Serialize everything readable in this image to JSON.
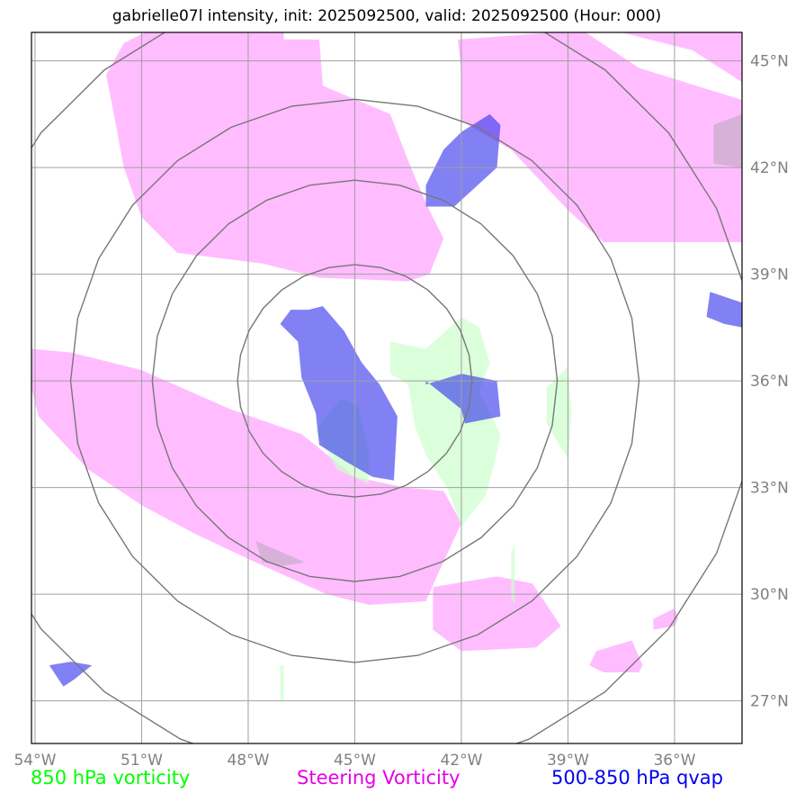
{
  "title": "gabrielle07l intensity, init: 2025092500, valid: 2025092500 (Hour: 000)",
  "colors": {
    "vorticity850": "#ccffcc",
    "steering": "#ff99ff",
    "qvap": "#3333ee",
    "grid": "#a0a0a0",
    "rings": "#777777",
    "tick": "#808080"
  },
  "legend": [
    {
      "label": "850 hPa vorticity",
      "color": "#00ff00"
    },
    {
      "label": "Steering Vorticity",
      "color": "#e600e6"
    },
    {
      "label": "500-850 hPa qvap",
      "color": "#0000ee"
    }
  ],
  "chart_data": {
    "type": "map-contour",
    "xlim": [
      -54.1,
      -34.1
    ],
    "ylim": [
      25.8,
      45.8
    ],
    "lon_ticks": [
      -54,
      -51,
      -48,
      -45,
      -42,
      -39,
      -36
    ],
    "lon_tick_labels": [
      "54°W",
      "51°W",
      "48°W",
      "45°W",
      "42°W",
      "39°W",
      "36°W"
    ],
    "lat_ticks": [
      27,
      30,
      33,
      36,
      39,
      42,
      45
    ],
    "lat_tick_labels": [
      "27°N",
      "30°N",
      "33°N",
      "36°N",
      "39°N",
      "42°N",
      "45°N"
    ],
    "center": [
      -45,
      36
    ],
    "rings_deg": [
      3.3,
      5.7,
      8.0,
      11.3
    ],
    "regions": [
      {
        "layer": "steering",
        "name": "steering-north-central",
        "points": [
          [
            -50.9,
            45.8
          ],
          [
            -47,
            45.8
          ],
          [
            -47,
            45.6
          ],
          [
            -46,
            45.6
          ],
          [
            -45.9,
            44.3
          ],
          [
            -44,
            43.5
          ],
          [
            -43.5,
            42.2
          ],
          [
            -43,
            41
          ],
          [
            -42.5,
            40
          ],
          [
            -42.9,
            39
          ],
          [
            -43.5,
            38.8
          ],
          [
            -46,
            38.9
          ],
          [
            -47.6,
            39.3
          ],
          [
            -50,
            39.6
          ],
          [
            -51.0,
            40.6
          ],
          [
            -51.5,
            42
          ],
          [
            -51.8,
            43.6
          ],
          [
            -52.0,
            44.6
          ],
          [
            -51.5,
            45.5
          ]
        ]
      },
      {
        "layer": "steering",
        "name": "steering-north-east",
        "points": [
          [
            -39.4,
            45.8
          ],
          [
            -34.1,
            45.8
          ],
          [
            -34.1,
            44.4
          ],
          [
            -35.5,
            45.3
          ],
          [
            -37.5,
            45.8
          ],
          [
            -38.5,
            45.8
          ],
          [
            -37,
            44.8
          ],
          [
            -34.1,
            43.9
          ],
          [
            -34.1,
            39.9
          ],
          [
            -38,
            39.9
          ],
          [
            -39,
            40.8
          ],
          [
            -40.6,
            42.5
          ],
          [
            -42,
            43.3
          ],
          [
            -42.0,
            44.7
          ],
          [
            -42.1,
            45.6
          ]
        ]
      },
      {
        "layer": "steering",
        "name": "steering-south-band",
        "points": [
          [
            -54.1,
            36.9
          ],
          [
            -53,
            36.8
          ],
          [
            -51,
            36.3
          ],
          [
            -48.5,
            35.2
          ],
          [
            -46.5,
            34.5
          ],
          [
            -45,
            33.3
          ],
          [
            -43.6,
            33
          ],
          [
            -42.5,
            32.9
          ],
          [
            -42.0,
            32.0
          ],
          [
            -42.6,
            30.7
          ],
          [
            -43.0,
            29.8
          ],
          [
            -44.6,
            29.7
          ],
          [
            -45.8,
            30.0
          ],
          [
            -47.8,
            30.9
          ],
          [
            -49.5,
            31.7
          ],
          [
            -51,
            32.5
          ],
          [
            -52.5,
            33.5
          ],
          [
            -53.9,
            35.0
          ],
          [
            -54.1,
            35.8
          ]
        ]
      },
      {
        "layer": "steering",
        "name": "steering-south-patch",
        "points": [
          [
            -42.8,
            30.2
          ],
          [
            -41,
            30.5
          ],
          [
            -40.0,
            30.3
          ],
          [
            -39.2,
            29.1
          ],
          [
            -39.9,
            28.5
          ],
          [
            -42.0,
            28.4
          ],
          [
            -42.8,
            29.0
          ]
        ]
      },
      {
        "layer": "steering",
        "name": "steering-se-patch",
        "points": [
          [
            -38.0,
            27.8
          ],
          [
            -37,
            27.8
          ],
          [
            -36.9,
            28.0
          ],
          [
            -37.2,
            28.7
          ],
          [
            -38.2,
            28.4
          ],
          [
            -38.4,
            28.0
          ]
        ]
      },
      {
        "layer": "steering",
        "name": "steering-se-small",
        "points": [
          [
            -36.6,
            29.0
          ],
          [
            -36,
            29.1
          ],
          [
            -35.9,
            29.3
          ],
          [
            -36.0,
            29.6
          ],
          [
            -36.6,
            29.3
          ]
        ]
      },
      {
        "layer": "vorticity850",
        "name": "vorticity-central",
        "points": [
          [
            -43.0,
            36.9
          ],
          [
            -42.0,
            37.8
          ],
          [
            -41.5,
            37.5
          ],
          [
            -41.2,
            36.5
          ],
          [
            -41.5,
            35.7
          ],
          [
            -40.9,
            34.5
          ],
          [
            -41.0,
            34.0
          ],
          [
            -41.3,
            32.8
          ],
          [
            -42.0,
            31.9
          ],
          [
            -42.4,
            33.0
          ],
          [
            -43.0,
            33.9
          ],
          [
            -43.3,
            34.7
          ],
          [
            -43.5,
            35.9
          ],
          [
            -44.0,
            36.2
          ],
          [
            -44.0,
            37.1
          ]
        ]
      },
      {
        "layer": "vorticity850",
        "name": "vorticity-east-sliver",
        "points": [
          [
            -39.6,
            35.8
          ],
          [
            -39,
            36.4
          ],
          [
            -38.9,
            35.1
          ],
          [
            -39.0,
            33.8
          ],
          [
            -39.6,
            34.8
          ]
        ]
      },
      {
        "layer": "vorticity850",
        "name": "vorticity-west-blob",
        "points": [
          [
            -45.4,
            35.5
          ],
          [
            -44.9,
            35.3
          ],
          [
            -44.6,
            34.0
          ],
          [
            -44.6,
            33.1
          ],
          [
            -45.5,
            33.5
          ],
          [
            -46.1,
            34.6
          ]
        ]
      },
      {
        "layer": "vorticity850",
        "name": "vorticity-south-line",
        "points": [
          [
            -40.6,
            31.2
          ],
          [
            -40.5,
            31.4
          ],
          [
            -40.5,
            29.7
          ],
          [
            -40.6,
            29.9
          ]
        ]
      },
      {
        "layer": "vorticity850",
        "name": "vorticity-sw-line",
        "points": [
          [
            -47.1,
            28.0
          ],
          [
            -47,
            28.0
          ],
          [
            -47,
            27.0
          ],
          [
            -47.1,
            27.0
          ]
        ]
      },
      {
        "layer": "qvap",
        "name": "qvap-north",
        "points": [
          [
            -43.0,
            40.9
          ],
          [
            -42.2,
            40.9
          ],
          [
            -41.0,
            42.0
          ],
          [
            -40.9,
            43.2
          ],
          [
            -41.2,
            43.5
          ],
          [
            -42.0,
            43.0
          ],
          [
            -42.5,
            42.5
          ],
          [
            -43.0,
            41.5
          ]
        ]
      },
      {
        "layer": "qvap",
        "name": "qvap-central",
        "points": [
          [
            -46.3,
            38.0
          ],
          [
            -45.9,
            38.1
          ],
          [
            -45.3,
            37.4
          ],
          [
            -44.8,
            36.5
          ],
          [
            -44.3,
            35.9
          ],
          [
            -43.8,
            35.0
          ],
          [
            -43.9,
            33.2
          ],
          [
            -44.5,
            33.3
          ],
          [
            -45.2,
            33.7
          ],
          [
            -46,
            34.2
          ],
          [
            -46.1,
            35.1
          ],
          [
            -46.5,
            36.1
          ],
          [
            -46.6,
            37.1
          ],
          [
            -47.1,
            37.6
          ],
          [
            -46.8,
            38.0
          ]
        ]
      },
      {
        "layer": "qvap",
        "name": "qvap-east-center",
        "points": [
          [
            -43.0,
            35.9
          ],
          [
            -42.0,
            36.2
          ],
          [
            -41.0,
            36.0
          ],
          [
            -40.9,
            35.0
          ],
          [
            -41.9,
            34.8
          ],
          [
            -42.0,
            35.2
          ],
          [
            -43.0,
            36.0
          ]
        ]
      },
      {
        "layer": "qvap",
        "name": "qvap-east-edge",
        "points": [
          [
            -35.0,
            38.5
          ],
          [
            -34.1,
            38.2
          ],
          [
            -34.1,
            37.5
          ],
          [
            -34.6,
            37.6
          ],
          [
            -35.1,
            37.8
          ]
        ]
      },
      {
        "layer": "qvap",
        "name": "qvap-southwest",
        "points": [
          [
            -53.6,
            28.0
          ],
          [
            -53,
            28.1
          ],
          [
            -52.4,
            28.0
          ],
          [
            -52.9,
            27.6
          ],
          [
            -53.2,
            27.4
          ]
        ]
      },
      {
        "layer": "steering",
        "name": "steering-grey-overlap-a",
        "points": [
          [
            -47.8,
            31.5
          ],
          [
            -46.4,
            30.9
          ],
          [
            -47.0,
            30.8
          ],
          [
            -47.6,
            30.9
          ]
        ]
      },
      {
        "layer": "steering",
        "name": "steering-grey-overlap-b",
        "points": [
          [
            -34.1,
            43.5
          ],
          [
            -34.9,
            43.2
          ],
          [
            -34.9,
            42.1
          ],
          [
            -34.1,
            42.0
          ]
        ]
      }
    ]
  }
}
